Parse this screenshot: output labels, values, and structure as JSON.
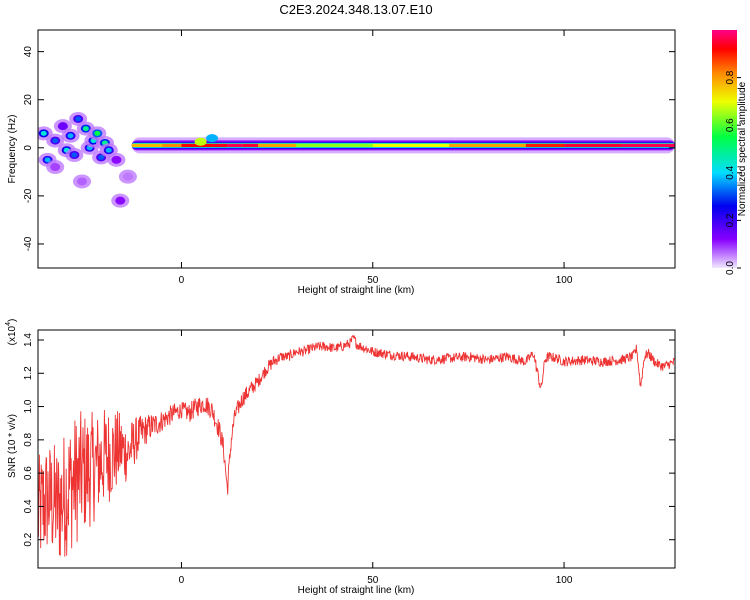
{
  "figure": {
    "title": "C2E3.2024.348.13.07.E10"
  },
  "chart_data": [
    {
      "type": "heatmap",
      "title": "C2E3.2024.348.13.07.E10",
      "xlabel": "Height of straight line (km)",
      "ylabel": "Frequency (Hz)",
      "xlim": [
        -37.5,
        129
      ],
      "ylim": [
        -50,
        49
      ],
      "x_ticks": [
        "0",
        "50",
        "100"
      ],
      "x_tick_values": [
        0,
        50,
        100
      ],
      "y_ticks": [
        "40",
        "20",
        "0",
        "-20",
        "-40"
      ],
      "y_tick_values": [
        40,
        20,
        0,
        -20,
        -40
      ],
      "colorbar": {
        "label": "Normalized spectral amplitude",
        "range": [
          0,
          1
        ],
        "ticks": [
          "0.0",
          "0.2",
          "0.4",
          "0.6",
          "0.8"
        ],
        "tick_values": [
          0.0,
          0.2,
          0.4,
          0.6,
          0.8
        ],
        "colormap": [
          "#f0e8ff",
          "#8800ff",
          "#0000ee",
          "#00ddff",
          "#00ff44",
          "#eeff00",
          "#ff8800",
          "#ff0000",
          "#ff0088"
        ]
      },
      "main_band": {
        "center_hz": 1,
        "x_start": -13,
        "x_end": 129,
        "peak_values": [
          {
            "x": -13,
            "v": 0.75
          },
          {
            "x": -5,
            "v": 0.65
          },
          {
            "x": 0,
            "v": 0.85
          },
          {
            "x": 5,
            "v": 0.9
          },
          {
            "x": 8,
            "v": 0.85
          },
          {
            "x": 12,
            "v": 0.95
          },
          {
            "x": 16,
            "v": 0.95
          },
          {
            "x": 20,
            "v": 0.9
          },
          {
            "x": 30,
            "v": 0.55
          },
          {
            "x": 50,
            "v": 0.6
          },
          {
            "x": 70,
            "v": 0.65
          },
          {
            "x": 90,
            "v": 0.8
          },
          {
            "x": 100,
            "v": 0.9
          },
          {
            "x": 115,
            "v": 0.95
          },
          {
            "x": 129,
            "v": 0.95
          }
        ]
      },
      "scatter_blobs": [
        {
          "x": -36,
          "y": 6,
          "v": 0.4
        },
        {
          "x": -35,
          "y": -5,
          "v": 0.35
        },
        {
          "x": -33,
          "y": 3,
          "v": 0.3
        },
        {
          "x": -31,
          "y": 9,
          "v": 0.25
        },
        {
          "x": -30,
          "y": -1,
          "v": 0.4
        },
        {
          "x": -29,
          "y": 5,
          "v": 0.35
        },
        {
          "x": -28,
          "y": -3,
          "v": 0.3
        },
        {
          "x": -27,
          "y": 12,
          "v": 0.3
        },
        {
          "x": -25,
          "y": 8,
          "v": 0.45
        },
        {
          "x": -24,
          "y": 0,
          "v": 0.35
        },
        {
          "x": -23,
          "y": 3,
          "v": 0.4
        },
        {
          "x": -22,
          "y": 6,
          "v": 0.5
        },
        {
          "x": -21,
          "y": -4,
          "v": 0.3
        },
        {
          "x": -20,
          "y": 2,
          "v": 0.45
        },
        {
          "x": -19,
          "y": -1,
          "v": 0.35
        },
        {
          "x": -17,
          "y": -5,
          "v": 0.2
        },
        {
          "x": -16,
          "y": -22,
          "v": 0.2
        },
        {
          "x": -14,
          "y": -12,
          "v": 0.1
        },
        {
          "x": -33,
          "y": -8,
          "v": 0.15
        },
        {
          "x": -26,
          "y": -14,
          "v": 0.12
        }
      ]
    },
    {
      "type": "line",
      "xlabel": "Height of straight line (km)",
      "ylabel": "SNR (10 * v/v)",
      "y_multiplier": "(x10",
      "y_multiplier_exp": "4",
      "xlim": [
        -37.5,
        129
      ],
      "ylim": [
        0.03,
        1.46
      ],
      "x_ticks": [
        "0",
        "50",
        "100"
      ],
      "x_tick_values": [
        0,
        50,
        100
      ],
      "y_ticks": [
        "1.4",
        "1.2",
        "1.0",
        "0.8",
        "0.6",
        "0.4",
        "0.2"
      ],
      "y_tick_values": [
        1.4,
        1.2,
        1.0,
        0.8,
        0.6,
        0.4,
        0.2
      ],
      "series": [
        {
          "color": "#ee3333",
          "x": [
            -37.5,
            -35,
            -32,
            -30,
            -28,
            -26,
            -24,
            -22,
            -20,
            -18,
            -16,
            -14,
            -12,
            -10,
            -8,
            -6,
            -4,
            -2,
            0,
            2,
            4,
            6,
            8,
            10,
            11,
            12,
            13,
            14,
            16,
            18,
            20,
            22,
            24,
            26,
            28,
            30,
            32,
            34,
            36,
            38,
            40,
            42,
            44,
            45,
            46,
            48,
            50,
            55,
            60,
            65,
            70,
            75,
            80,
            85,
            90,
            92,
            94,
            95,
            96,
            98,
            100,
            105,
            110,
            115,
            118,
            119,
            120,
            121,
            122,
            124,
            126,
            129
          ],
          "y": [
            0.35,
            0.45,
            0.4,
            0.5,
            0.55,
            0.6,
            0.62,
            0.65,
            0.7,
            0.72,
            0.75,
            0.72,
            0.8,
            0.85,
            0.88,
            0.9,
            0.93,
            0.96,
            0.98,
            0.96,
            1.0,
            1.02,
            0.98,
            0.85,
            0.75,
            0.5,
            0.8,
            0.95,
            1.05,
            1.1,
            1.15,
            1.22,
            1.27,
            1.3,
            1.3,
            1.33,
            1.33,
            1.35,
            1.36,
            1.36,
            1.35,
            1.36,
            1.38,
            1.41,
            1.37,
            1.35,
            1.33,
            1.31,
            1.3,
            1.28,
            1.29,
            1.3,
            1.28,
            1.3,
            1.27,
            1.32,
            1.1,
            1.28,
            1.3,
            1.29,
            1.27,
            1.28,
            1.27,
            1.28,
            1.3,
            1.35,
            1.12,
            1.3,
            1.32,
            1.26,
            1.24,
            1.27
          ],
          "noise_amplitude": [
            0.35,
            0.35,
            0.38,
            0.4,
            0.4,
            0.38,
            0.35,
            0.32,
            0.3,
            0.28,
            0.22,
            0.18,
            0.14,
            0.1,
            0.08,
            0.07,
            0.06,
            0.06,
            0.05,
            0.06,
            0.06,
            0.06,
            0.06,
            0.06,
            0.06,
            0.06,
            0.06,
            0.05,
            0.05,
            0.05,
            0.04,
            0.04,
            0.04,
            0.03,
            0.03,
            0.03,
            0.03,
            0.03,
            0.03,
            0.03,
            0.03,
            0.03,
            0.03,
            0.03,
            0.03,
            0.03,
            0.03,
            0.03,
            0.03,
            0.03,
            0.03,
            0.03,
            0.03,
            0.03,
            0.03,
            0.03,
            0.04,
            0.03,
            0.03,
            0.03,
            0.03,
            0.03,
            0.03,
            0.03,
            0.03,
            0.03,
            0.04,
            0.03,
            0.03,
            0.03,
            0.03,
            0.03
          ]
        }
      ]
    }
  ]
}
